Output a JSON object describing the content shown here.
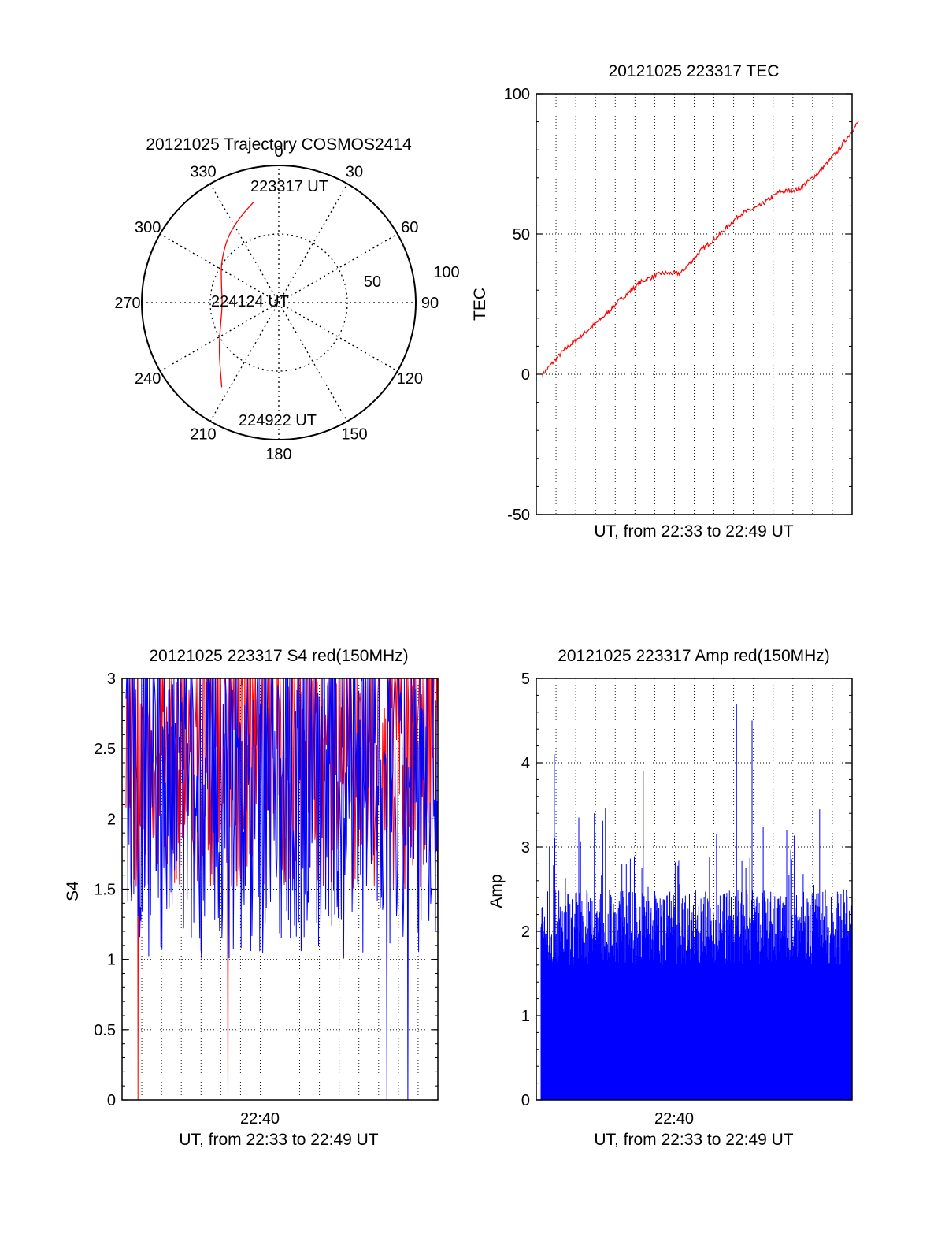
{
  "colors": {
    "red": "#ff0000",
    "blue": "#0000ff",
    "axis": "#000000",
    "grid": "#000000"
  },
  "chart_data": [
    {
      "type": "scatter",
      "subtype": "polar-trajectory",
      "title": "20121025 Trajectory COSMOS2414",
      "azimuth_labels": [
        "0",
        "30",
        "60",
        "90",
        "120",
        "150",
        "180",
        "210",
        "240",
        "270",
        "300",
        "330"
      ],
      "radial_labels": [
        "50",
        "100"
      ],
      "grid": true,
      "series": [
        {
          "color": "#ff0000",
          "points": [
            {
              "az": 346,
              "elev": 22
            },
            {
              "az": 330,
              "elev": 30
            },
            {
              "az": 308,
              "elev": 42
            },
            {
              "az": 285,
              "elev": 51
            },
            {
              "az": 270,
              "elev": 53
            },
            {
              "az": 252,
              "elev": 50
            },
            {
              "az": 232,
              "elev": 40
            },
            {
              "az": 214,
              "elev": 23
            }
          ]
        }
      ],
      "annotations": [
        {
          "text": "223317 UT",
          "az": 346,
          "elev": 22
        },
        {
          "text": "224124 UT",
          "az": 273,
          "elev": 53
        },
        {
          "text": "224922 UT",
          "az": 214,
          "elev": 23
        }
      ]
    },
    {
      "type": "line",
      "title": "20121025 223317 TEC",
      "xlabel": "UT, from 22:33 to 22:49 UT",
      "ylabel": "TEC",
      "xlim": [
        0,
        16
      ],
      "ylim": [
        -50,
        100
      ],
      "yticks": [
        "-50",
        "0",
        "50",
        "100"
      ],
      "grid": true,
      "series": [
        {
          "color": "#ff0000",
          "x": [
            0,
            1,
            2,
            3,
            4,
            5,
            6,
            7,
            8,
            9,
            10,
            11,
            12,
            13,
            14,
            15,
            16
          ],
          "values": [
            0,
            8,
            14,
            20,
            27,
            33,
            36,
            36,
            44,
            50,
            57,
            60,
            65,
            66,
            72,
            80,
            90
          ]
        }
      ]
    },
    {
      "type": "line",
      "title": "20121025 223317 S4 red(150MHz)",
      "xlabel": "UT, from 22:33 to 22:49 UT",
      "ylabel": "S4",
      "xlim": [
        0,
        16
      ],
      "ylim": [
        0,
        3
      ],
      "xticks": [
        "22:40"
      ],
      "yticks": [
        "0",
        "0.5",
        "1",
        "1.5",
        "2",
        "2.5",
        "3"
      ],
      "grid": true,
      "series": [
        {
          "color": "#ff0000",
          "style": "dense-noise",
          "mean": 2.5,
          "low": 1.5,
          "high": 3.0
        },
        {
          "color": "#0000ff",
          "style": "dense-noise",
          "mean": 2.0,
          "low": 1.0,
          "high": 3.0
        }
      ]
    },
    {
      "type": "bar",
      "title": "20121025 223317 Amp red(150MHz)",
      "xlabel": "UT, from 22:33 to 22:49 UT",
      "ylabel": "Amp",
      "xlim": [
        0,
        16
      ],
      "ylim": [
        0,
        5
      ],
      "xticks": [
        "22:40"
      ],
      "yticks": [
        "0",
        "1",
        "2",
        "3",
        "4",
        "5"
      ],
      "grid": true,
      "series": [
        {
          "color": "#0000ff",
          "style": "dense-bars",
          "base": 1.6,
          "peaks": [
            4.1,
            3.4,
            3.9,
            4.7,
            4.5
          ]
        }
      ]
    }
  ]
}
